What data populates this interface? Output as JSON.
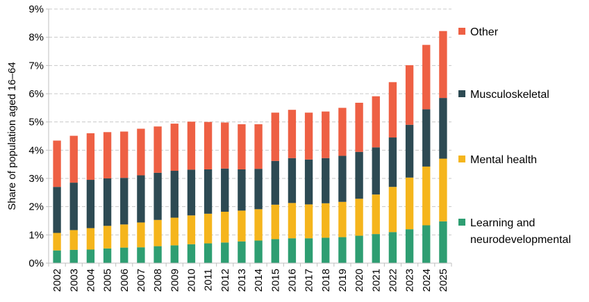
{
  "chart_data": {
    "type": "bar",
    "stacked": true,
    "title": "",
    "xlabel": "",
    "ylabel": "Share of population aged 16–64",
    "ylim": [
      0,
      9
    ],
    "yticks": [
      "0%",
      "1%",
      "2%",
      "3%",
      "4%",
      "5%",
      "6%",
      "7%",
      "8%",
      "9%"
    ],
    "grid": "horizontal dashed",
    "legend_position": "right",
    "categories": [
      "2002",
      "2003",
      "2004",
      "2005",
      "2006",
      "2007",
      "2008",
      "2009",
      "2010",
      "2011",
      "2012",
      "2013",
      "2014",
      "2015",
      "2016",
      "2017",
      "2018",
      "2019",
      "2020",
      "2021",
      "2022",
      "2023",
      "2024",
      "2025"
    ],
    "series": [
      {
        "name": "Learning and neurodevelopmental",
        "color": "#2e9e72",
        "values": [
          0.45,
          0.47,
          0.48,
          0.52,
          0.55,
          0.56,
          0.6,
          0.63,
          0.67,
          0.7,
          0.73,
          0.77,
          0.8,
          0.85,
          0.88,
          0.88,
          0.9,
          0.92,
          0.97,
          1.03,
          1.1,
          1.2,
          1.34,
          1.48
        ]
      },
      {
        "name": "Mental health",
        "color": "#f5b51c",
        "values": [
          0.62,
          0.7,
          0.76,
          0.8,
          0.82,
          0.88,
          0.93,
          0.98,
          1.02,
          1.05,
          1.09,
          1.09,
          1.11,
          1.22,
          1.25,
          1.2,
          1.22,
          1.25,
          1.31,
          1.4,
          1.6,
          1.83,
          2.08,
          2.22
        ]
      },
      {
        "name": "Musculoskeletal",
        "color": "#2d4a53",
        "values": [
          1.63,
          1.68,
          1.71,
          1.68,
          1.65,
          1.67,
          1.67,
          1.66,
          1.62,
          1.57,
          1.53,
          1.46,
          1.43,
          1.55,
          1.59,
          1.59,
          1.6,
          1.63,
          1.66,
          1.67,
          1.75,
          1.87,
          2.03,
          2.15
        ]
      },
      {
        "name": "Other",
        "color": "#ee6044",
        "values": [
          1.64,
          1.66,
          1.65,
          1.64,
          1.64,
          1.65,
          1.64,
          1.67,
          1.7,
          1.68,
          1.63,
          1.6,
          1.58,
          1.71,
          1.71,
          1.66,
          1.65,
          1.7,
          1.74,
          1.81,
          1.96,
          2.11,
          2.28,
          2.37
        ]
      }
    ],
    "legend_order": [
      "Other",
      "Musculoskeletal",
      "Mental health",
      "Learning and neurodevelopmental"
    ],
    "legend_lines": {
      "Other": [
        "Other"
      ],
      "Musculoskeletal": [
        "Musculoskeletal"
      ],
      "Mental health": [
        "Mental health"
      ],
      "Learning and neurodevelopmental": [
        "Learning and",
        "neurodevelopmental"
      ]
    }
  }
}
